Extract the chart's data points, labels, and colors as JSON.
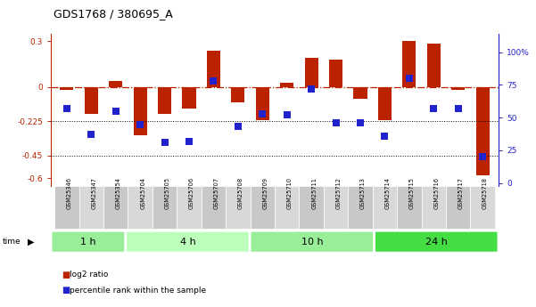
{
  "title": "GDS1768 / 380695_A",
  "samples": [
    "GSM25346",
    "GSM25347",
    "GSM25354",
    "GSM25704",
    "GSM25705",
    "GSM25706",
    "GSM25707",
    "GSM25708",
    "GSM25709",
    "GSM25710",
    "GSM25711",
    "GSM25712",
    "GSM25713",
    "GSM25714",
    "GSM25715",
    "GSM25716",
    "GSM25717",
    "GSM25718"
  ],
  "log2_ratio": [
    -0.02,
    -0.18,
    0.04,
    -0.32,
    -0.18,
    -0.14,
    0.24,
    -0.1,
    -0.22,
    0.03,
    0.19,
    0.18,
    -0.08,
    -0.22,
    0.3,
    0.285,
    -0.02,
    -0.58
  ],
  "percentile_rank": [
    57,
    37,
    55,
    45,
    31,
    32,
    78,
    43,
    53,
    52,
    72,
    46,
    46,
    36,
    80,
    57,
    57,
    20
  ],
  "time_groups": [
    {
      "label": "1 h",
      "start": 0,
      "end": 3,
      "color": "#99ee99"
    },
    {
      "label": "4 h",
      "start": 3,
      "end": 8,
      "color": "#bbffbb"
    },
    {
      "label": "10 h",
      "start": 8,
      "end": 13,
      "color": "#99ee99"
    },
    {
      "label": "24 h",
      "start": 13,
      "end": 18,
      "color": "#44dd44"
    }
  ],
  "bar_color": "#bb2200",
  "dot_color": "#2222cc",
  "ylim_left": [
    -0.65,
    0.35
  ],
  "ylim_right": [
    -2.0,
    114.0
  ],
  "yticks_left": [
    -0.6,
    -0.45,
    -0.225,
    0.0,
    0.3
  ],
  "yticks_left_labels": [
    "-0.6",
    "-0.45",
    "-0.225",
    "0",
    "0.3"
  ],
  "yticks_right": [
    0,
    25,
    50,
    75,
    100
  ],
  "yticks_right_labels": [
    "0",
    "25",
    "50",
    "75",
    "100%"
  ],
  "hlines": [
    -0.225,
    -0.45
  ],
  "zero_line": 0.0,
  "background_color": "#ffffff",
  "legend_log2": "log2 ratio",
  "legend_pct": "percentile rank within the sample",
  "bar_width": 0.55,
  "dot_size": 28
}
